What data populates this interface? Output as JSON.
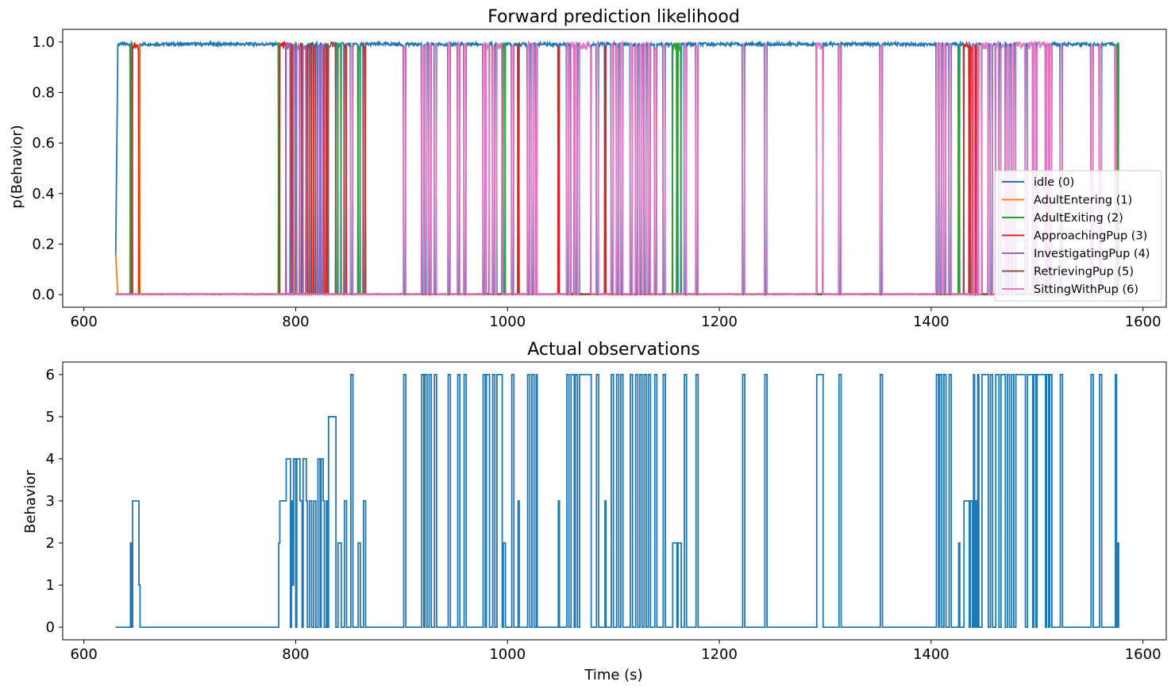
{
  "chart_data": [
    {
      "type": "line",
      "title": "Forward prediction likelihood",
      "xlabel": "",
      "ylabel": "p(Behavior)",
      "xlim": [
        580,
        1622
      ],
      "ylim": [
        -0.05,
        1.05
      ],
      "xticks": [
        600,
        800,
        1000,
        1200,
        1400,
        1600
      ],
      "yticks": [
        0.0,
        0.2,
        0.4,
        0.6,
        0.8,
        1.0
      ],
      "legend_position": "lower-right",
      "legend": [
        "idle (0)",
        "AdultEntering (1)",
        "AdultExiting (2)",
        "ApproachingPup (3)",
        "InvestigatingPup (4)",
        "RetrievingPup (5)",
        "SittingWithPup (6)"
      ],
      "colors": [
        "#1f77b4",
        "#ff7f0e",
        "#2ca02c",
        "#d62728",
        "#9467bd",
        "#8c564b",
        "#e377c2"
      ],
      "time_range": [
        630,
        1577
      ],
      "series": [
        {
          "name": "idle (0)",
          "behavior": 0
        },
        {
          "name": "AdultEntering (1)",
          "behavior": 1
        },
        {
          "name": "AdultExiting (2)",
          "behavior": 2
        },
        {
          "name": "ApproachingPup (3)",
          "behavior": 3
        },
        {
          "name": "InvestigatingPup (4)",
          "behavior": 4
        },
        {
          "name": "RetrievingPup (5)",
          "behavior": 5
        },
        {
          "name": "SittingWithPup (6)",
          "behavior": 6
        }
      ],
      "note_series_source": "probabilities approximately follow the observed behavior sequence below: ~1.0 for the active behavior, ~0.0 otherwise"
    },
    {
      "type": "line",
      "title": "Actual observations",
      "xlabel": "Time (s)",
      "ylabel": "Behavior",
      "xlim": [
        580,
        1622
      ],
      "ylim": [
        -0.3,
        6.3
      ],
      "xticks": [
        600,
        800,
        1000,
        1200,
        1400,
        1600
      ],
      "yticks": [
        0,
        1,
        2,
        3,
        4,
        5,
        6
      ],
      "color": "#1f77b4",
      "steps": [
        [
          630,
          0
        ],
        [
          644,
          2
        ],
        [
          645,
          0
        ],
        [
          646,
          3
        ],
        [
          652,
          1
        ],
        [
          653,
          0
        ],
        [
          784,
          2
        ],
        [
          785,
          3
        ],
        [
          791,
          4
        ],
        [
          795,
          0
        ],
        [
          796,
          3
        ],
        [
          797,
          1
        ],
        [
          798,
          4
        ],
        [
          800,
          0
        ],
        [
          801,
          4
        ],
        [
          804,
          3
        ],
        [
          806,
          0
        ],
        [
          807,
          4
        ],
        [
          810,
          3
        ],
        [
          811,
          0
        ],
        [
          813,
          3
        ],
        [
          815,
          0
        ],
        [
          817,
          3
        ],
        [
          819,
          0
        ],
        [
          821,
          4
        ],
        [
          823,
          0
        ],
        [
          824,
          4
        ],
        [
          826,
          3
        ],
        [
          827,
          0
        ],
        [
          829,
          3
        ],
        [
          830,
          0
        ],
        [
          831,
          5
        ],
        [
          838,
          0
        ],
        [
          840,
          2
        ],
        [
          843,
          0
        ],
        [
          846,
          3
        ],
        [
          848,
          0
        ],
        [
          852,
          6
        ],
        [
          854,
          0
        ],
        [
          859,
          2
        ],
        [
          861,
          0
        ],
        [
          864,
          3
        ],
        [
          866,
          0
        ],
        [
          902,
          6
        ],
        [
          904,
          0
        ],
        [
          919,
          6
        ],
        [
          921,
          0
        ],
        [
          922,
          6
        ],
        [
          924,
          0
        ],
        [
          926,
          6
        ],
        [
          928,
          0
        ],
        [
          931,
          6
        ],
        [
          933,
          0
        ],
        [
          944,
          6
        ],
        [
          946,
          0
        ],
        [
          953,
          6
        ],
        [
          955,
          0
        ],
        [
          959,
          6
        ],
        [
          961,
          0
        ],
        [
          977,
          6
        ],
        [
          979,
          0
        ],
        [
          980,
          6
        ],
        [
          983,
          0
        ],
        [
          986,
          6
        ],
        [
          988,
          0
        ],
        [
          990,
          6
        ],
        [
          995,
          0
        ],
        [
          996,
          2
        ],
        [
          998,
          0
        ],
        [
          1004,
          6
        ],
        [
          1006,
          0
        ],
        [
          1010,
          3
        ],
        [
          1011,
          0
        ],
        [
          1019,
          6
        ],
        [
          1021,
          0
        ],
        [
          1023,
          6
        ],
        [
          1025,
          0
        ],
        [
          1027,
          6
        ],
        [
          1028,
          0
        ],
        [
          1048,
          3
        ],
        [
          1049,
          0
        ],
        [
          1056,
          6
        ],
        [
          1058,
          0
        ],
        [
          1060,
          6
        ],
        [
          1063,
          0
        ],
        [
          1064,
          6
        ],
        [
          1066,
          0
        ],
        [
          1068,
          6
        ],
        [
          1079,
          0
        ],
        [
          1084,
          6
        ],
        [
          1086,
          0
        ],
        [
          1092,
          3
        ],
        [
          1093,
          0
        ],
        [
          1098,
          6
        ],
        [
          1100,
          0
        ],
        [
          1103,
          6
        ],
        [
          1105,
          0
        ],
        [
          1107,
          6
        ],
        [
          1109,
          0
        ],
        [
          1116,
          6
        ],
        [
          1118,
          0
        ],
        [
          1121,
          6
        ],
        [
          1123,
          0
        ],
        [
          1125,
          6
        ],
        [
          1127,
          0
        ],
        [
          1129,
          6
        ],
        [
          1131,
          0
        ],
        [
          1133,
          6
        ],
        [
          1135,
          0
        ],
        [
          1139,
          6
        ],
        [
          1141,
          0
        ],
        [
          1147,
          6
        ],
        [
          1149,
          0
        ],
        [
          1156,
          2
        ],
        [
          1160,
          0
        ],
        [
          1161,
          2
        ],
        [
          1164,
          0
        ],
        [
          1167,
          6
        ],
        [
          1169,
          0
        ],
        [
          1178,
          6
        ],
        [
          1180,
          0
        ],
        [
          1222,
          6
        ],
        [
          1224,
          0
        ],
        [
          1243,
          6
        ],
        [
          1245,
          0
        ],
        [
          1292,
          6
        ],
        [
          1298,
          0
        ],
        [
          1313,
          6
        ],
        [
          1315,
          0
        ],
        [
          1352,
          6
        ],
        [
          1354,
          0
        ],
        [
          1405,
          6
        ],
        [
          1407,
          0
        ],
        [
          1408,
          6
        ],
        [
          1410,
          0
        ],
        [
          1412,
          6
        ],
        [
          1414,
          0
        ],
        [
          1417,
          6
        ],
        [
          1419,
          0
        ],
        [
          1426,
          2
        ],
        [
          1427,
          0
        ],
        [
          1431,
          3
        ],
        [
          1436,
          0
        ],
        [
          1437,
          3
        ],
        [
          1439,
          0
        ],
        [
          1440,
          6
        ],
        [
          1441,
          0
        ],
        [
          1442,
          3
        ],
        [
          1443,
          0
        ],
        [
          1444,
          6
        ],
        [
          1445,
          0
        ],
        [
          1448,
          6
        ],
        [
          1454,
          0
        ],
        [
          1456,
          6
        ],
        [
          1458,
          0
        ],
        [
          1461,
          6
        ],
        [
          1464,
          0
        ],
        [
          1466,
          6
        ],
        [
          1470,
          0
        ],
        [
          1472,
          6
        ],
        [
          1474,
          0
        ],
        [
          1476,
          6
        ],
        [
          1478,
          0
        ],
        [
          1480,
          6
        ],
        [
          1489,
          0
        ],
        [
          1491,
          6
        ],
        [
          1496,
          0
        ],
        [
          1497,
          6
        ],
        [
          1499,
          0
        ],
        [
          1500,
          6
        ],
        [
          1508,
          0
        ],
        [
          1509,
          6
        ],
        [
          1511,
          0
        ],
        [
          1512,
          6
        ],
        [
          1514,
          0
        ],
        [
          1522,
          6
        ],
        [
          1524,
          0
        ],
        [
          1551,
          6
        ],
        [
          1553,
          0
        ],
        [
          1559,
          6
        ],
        [
          1561,
          0
        ],
        [
          1574,
          6
        ],
        [
          1575,
          0
        ],
        [
          1576,
          2
        ],
        [
          1577,
          0
        ]
      ]
    }
  ]
}
